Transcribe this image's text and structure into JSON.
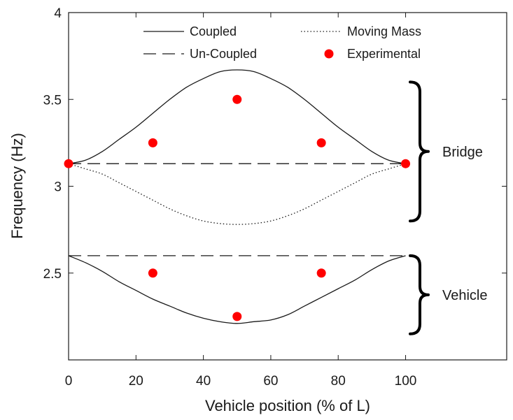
{
  "chart_data": {
    "type": "line",
    "xlabel": "Vehicle position (% of L)",
    "ylabel": "Frequency (Hz)",
    "xlim": [
      0,
      130
    ],
    "ylim": [
      2.0,
      4.0
    ],
    "x_ticks": [
      0,
      20,
      40,
      60,
      80,
      100
    ],
    "y_ticks": [
      2.5,
      3,
      3.5,
      4
    ],
    "x_tick_labels": [
      "0",
      "20",
      "40",
      "60",
      "80",
      "100"
    ],
    "y_tick_labels": [
      "2.5",
      "3",
      "3.5",
      "4"
    ],
    "grid": false,
    "legend_position": "top",
    "series": [
      {
        "name": "Coupled",
        "style": "solid",
        "group": "bridge",
        "x": [
          0,
          5,
          10,
          15,
          20,
          25,
          30,
          35,
          40,
          45,
          50,
          55,
          60,
          65,
          70,
          75,
          80,
          85,
          90,
          95,
          100
        ],
        "y": [
          3.13,
          3.15,
          3.2,
          3.27,
          3.34,
          3.42,
          3.5,
          3.57,
          3.62,
          3.66,
          3.67,
          3.66,
          3.62,
          3.57,
          3.5,
          3.42,
          3.34,
          3.27,
          3.2,
          3.15,
          3.13
        ]
      },
      {
        "name": "Coupled",
        "style": "solid",
        "group": "vehicle",
        "x": [
          0,
          5,
          10,
          15,
          20,
          25,
          30,
          35,
          40,
          45,
          50,
          55,
          60,
          65,
          70,
          75,
          80,
          85,
          90,
          95,
          100
        ],
        "y": [
          2.6,
          2.56,
          2.51,
          2.45,
          2.4,
          2.35,
          2.31,
          2.27,
          2.24,
          2.22,
          2.21,
          2.22,
          2.23,
          2.26,
          2.31,
          2.36,
          2.41,
          2.46,
          2.52,
          2.57,
          2.6
        ]
      },
      {
        "name": "Un-Coupled",
        "style": "dashed",
        "group": "bridge",
        "x": [
          0,
          100
        ],
        "y": [
          3.13,
          3.13
        ]
      },
      {
        "name": "Un-Coupled",
        "style": "dashed",
        "group": "vehicle",
        "x": [
          0,
          100
        ],
        "y": [
          2.6,
          2.6
        ]
      },
      {
        "name": "Moving Mass",
        "style": "dotted",
        "group": "bridge",
        "x": [
          0,
          5,
          10,
          15,
          20,
          25,
          30,
          35,
          40,
          45,
          50,
          55,
          60,
          65,
          70,
          75,
          80,
          85,
          90,
          95,
          100
        ],
        "y": [
          3.13,
          3.1,
          3.07,
          3.02,
          2.97,
          2.92,
          2.87,
          2.83,
          2.8,
          2.785,
          2.78,
          2.785,
          2.8,
          2.83,
          2.87,
          2.92,
          2.97,
          3.02,
          3.07,
          3.1,
          3.13
        ]
      },
      {
        "name": "Experimental",
        "style": "markers",
        "x": [
          0,
          25,
          50,
          75,
          100,
          25,
          50,
          75
        ],
        "y": [
          3.13,
          3.25,
          3.5,
          3.25,
          3.13,
          2.5,
          2.25,
          2.5
        ]
      }
    ],
    "legend": [
      {
        "label": "Coupled",
        "style": "solid"
      },
      {
        "label": "Moving Mass",
        "style": "dotted"
      },
      {
        "label": "Un-Coupled",
        "style": "dashed"
      },
      {
        "label": "Experimental",
        "style": "markers"
      }
    ],
    "annotations": [
      {
        "label": "Bridge",
        "y_range": [
          2.8,
          3.6
        ]
      },
      {
        "label": "Vehicle",
        "y_range": [
          2.15,
          2.6
        ]
      }
    ],
    "colors": {
      "line": "#1a1a1a",
      "marker": "#ff0000"
    }
  }
}
